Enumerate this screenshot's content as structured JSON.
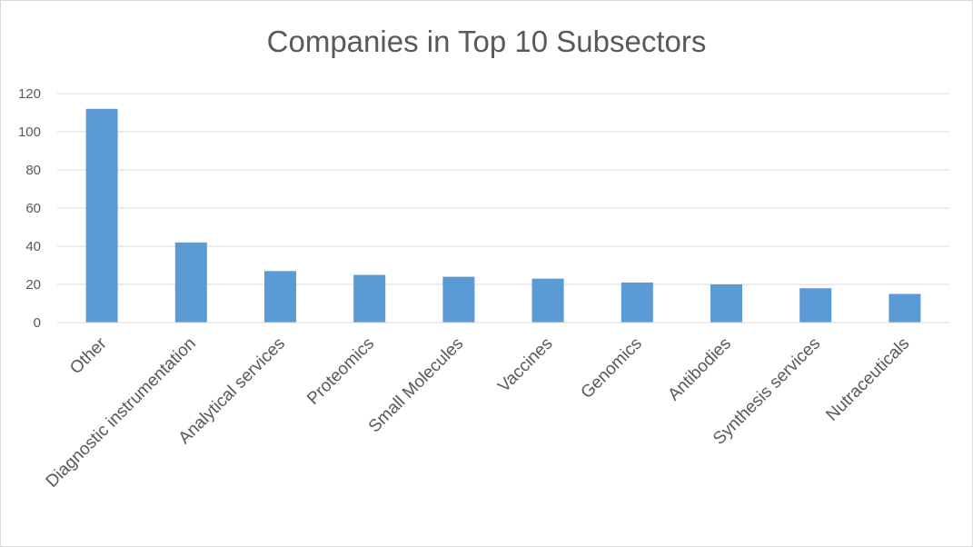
{
  "chart_data": {
    "type": "bar",
    "title": "Companies in Top 10 Subsectors",
    "categories": [
      "Other",
      "Diagnostic instrumentation",
      "Analytical services",
      "Proteomics",
      "Small Molecules",
      "Vaccines",
      "Genomics",
      "Antibodies",
      "Synthesis services",
      "Nutraceuticals"
    ],
    "values": [
      112,
      42,
      27,
      25,
      24,
      23,
      21,
      20,
      18,
      15
    ],
    "ylim": [
      0,
      120
    ],
    "yticks": [
      "0",
      "20",
      "40",
      "60",
      "80",
      "100",
      "120"
    ],
    "grid": true,
    "legend": "none",
    "bar_color": "#5b9bd5"
  }
}
